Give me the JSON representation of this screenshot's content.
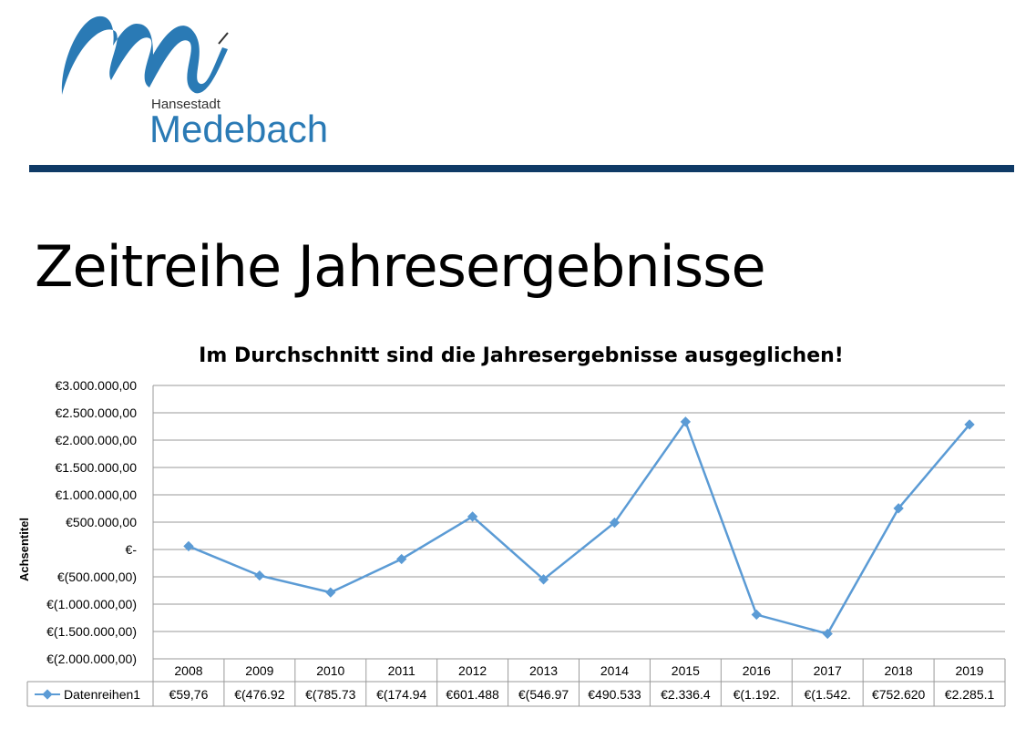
{
  "header": {
    "logo_line1": "Hansestadt",
    "logo_line2": "Medebach",
    "logo_color": "#2a7ab5",
    "rule_color": "#0f3a66"
  },
  "slide": {
    "title": "Zeitreihe Jahresergebnisse"
  },
  "chart_data": {
    "type": "line",
    "title": "Im Durchschnitt sind die Jahresergebnisse ausgeglichen!",
    "xlabel": "",
    "ylabel": "Achsentitel",
    "categories": [
      "2008",
      "2009",
      "2010",
      "2011",
      "2012",
      "2013",
      "2014",
      "2015",
      "2016",
      "2017",
      "2018",
      "2019"
    ],
    "series": [
      {
        "name": "Datenreihen1",
        "color": "#5b9bd5",
        "values": [
          59760,
          -476920,
          -785730,
          -174940,
          601488,
          -546970,
          490533,
          2336400,
          -1192000,
          -1542000,
          752620,
          2285100
        ],
        "table_labels": [
          "€59,76",
          "€(476.92",
          "€(785.73",
          "€(174.94",
          "€601.488",
          "€(546.97",
          "€490.533",
          "€2.336.4",
          "€(1.192.",
          "€(1.542.",
          "€752.620",
          "€2.285.1"
        ]
      }
    ],
    "ylim": [
      -2000000,
      3000000
    ],
    "y_ticks": [
      3000000,
      2500000,
      2000000,
      1500000,
      1000000,
      500000,
      0,
      -500000,
      -1000000,
      -1500000,
      -2000000
    ],
    "y_tick_labels": [
      "€3.000.000,00",
      "€2.500.000,00",
      "€2.000.000,00",
      "€1.500.000,00",
      "€1.000.000,00",
      "€500.000,00",
      "€-",
      "€(500.000,00)",
      "€(1.000.000,00)",
      "€(1.500.000,00)",
      "€(2.000.000,00)"
    ],
    "grid": true,
    "legend": "data-table"
  }
}
